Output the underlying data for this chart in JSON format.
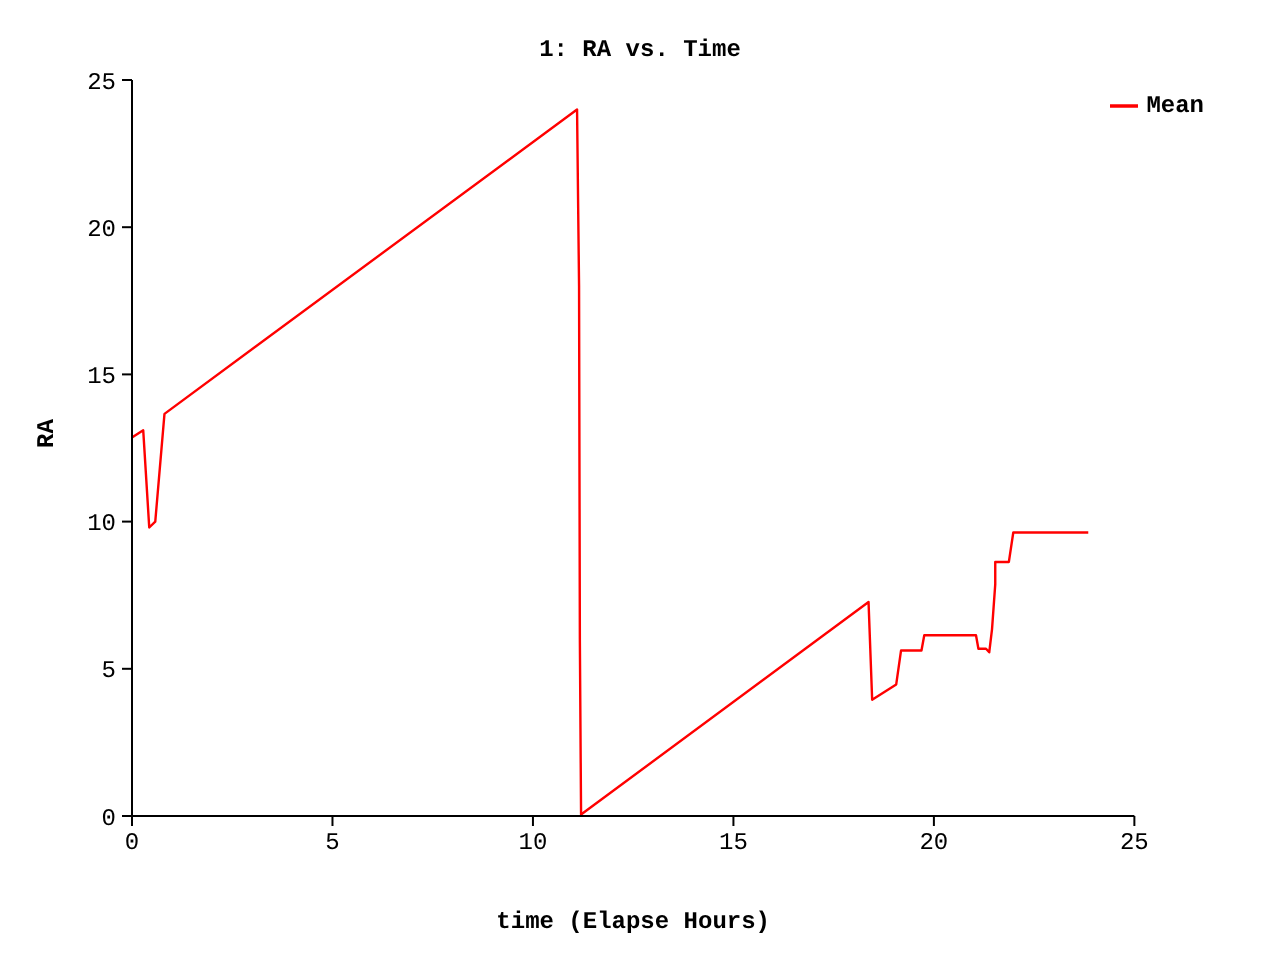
{
  "chart_data": {
    "type": "line",
    "title": "1: RA vs. Time",
    "xlabel": "time (Elapse Hours)",
    "ylabel": "RA",
    "xlim": [
      0,
      25
    ],
    "xticks": [
      0,
      5,
      10,
      15,
      20,
      25
    ],
    "ylim": [
      0,
      25
    ],
    "yticks": [
      0,
      5,
      10,
      15,
      20,
      25
    ],
    "grid": false,
    "legend": "top right",
    "marker": "none",
    "line_style": "solid",
    "series": [
      {
        "name": "Mean",
        "color": "#ff0000",
        "x": [
          0,
          0.28,
          0.43,
          0.58,
          0.81,
          11.1,
          11.15,
          11.17,
          11.2,
          18.37,
          18.46,
          19.06,
          19.18,
          19.69,
          19.76,
          21.05,
          21.11,
          21.3,
          21.38,
          21.45,
          21.53,
          21.53,
          21.87,
          21.98,
          23.85
        ],
        "values": [
          12.86,
          13.1,
          9.8,
          10.0,
          13.66,
          24.0,
          18.0,
          6.0,
          0.05,
          7.27,
          3.95,
          4.47,
          5.62,
          5.62,
          6.14,
          6.14,
          5.68,
          5.68,
          5.56,
          6.35,
          7.87,
          8.63,
          8.63,
          9.63,
          9.63
        ]
      }
    ]
  }
}
